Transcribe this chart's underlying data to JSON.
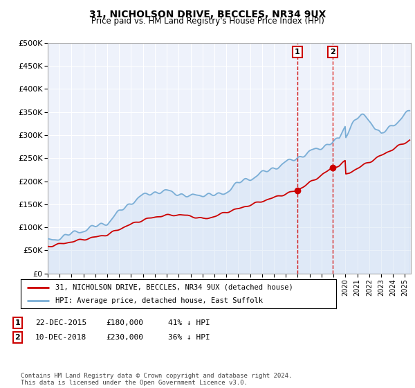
{
  "title": "31, NICHOLSON DRIVE, BECCLES, NR34 9UX",
  "subtitle": "Price paid vs. HM Land Registry's House Price Index (HPI)",
  "title_fontsize": 10,
  "subtitle_fontsize": 8.5,
  "ylim": [
    0,
    500000
  ],
  "yticks": [
    0,
    50000,
    100000,
    150000,
    200000,
    250000,
    300000,
    350000,
    400000,
    450000,
    500000
  ],
  "ytick_labels": [
    "£0",
    "£50K",
    "£100K",
    "£150K",
    "£200K",
    "£250K",
    "£300K",
    "£350K",
    "£400K",
    "£450K",
    "£500K"
  ],
  "background_color": "#ffffff",
  "plot_bg_color": "#eef2fb",
  "grid_color": "#ffffff",
  "hpi_color": "#7aaed6",
  "hpi_fill_color": "#c5d9f0",
  "price_color": "#cc0000",
  "purchase1_date": 2015.97,
  "purchase1_price": 180000,
  "purchase2_date": 2018.94,
  "purchase2_price": 230000,
  "vline_color": "#cc0000",
  "marker_color": "#cc0000",
  "legend_entries": [
    "31, NICHOLSON DRIVE, BECCLES, NR34 9UX (detached house)",
    "HPI: Average price, detached house, East Suffolk"
  ],
  "table_row1": [
    "1",
    "22-DEC-2015",
    "£180,000",
    "41% ↓ HPI"
  ],
  "table_row2": [
    "2",
    "10-DEC-2018",
    "£230,000",
    "36% ↓ HPI"
  ],
  "footer": "Contains HM Land Registry data © Crown copyright and database right 2024.\nThis data is licensed under the Open Government Licence v3.0.",
  "xmin": 1995.0,
  "xmax": 2025.5,
  "xtick_years": [
    1995,
    1996,
    1997,
    1998,
    1999,
    2000,
    2001,
    2002,
    2003,
    2004,
    2005,
    2006,
    2007,
    2008,
    2009,
    2010,
    2011,
    2012,
    2013,
    2014,
    2015,
    2016,
    2017,
    2018,
    2019,
    2020,
    2021,
    2022,
    2023,
    2024,
    2025
  ]
}
